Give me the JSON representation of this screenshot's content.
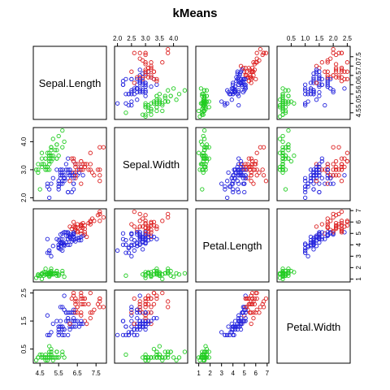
{
  "chart_data": {
    "type": "scatter",
    "title": "kMeans",
    "variables": [
      "Sepal.Length",
      "Sepal.Width",
      "Petal.Length",
      "Petal.Width"
    ],
    "ranges": [
      [
        4.3,
        7.9
      ],
      [
        2.0,
        4.4
      ],
      [
        1.0,
        6.9
      ],
      [
        0.1,
        2.5
      ]
    ],
    "ticks": [
      [
        4.5,
        5.5,
        6.5,
        7.5
      ],
      [
        2.0,
        3.0,
        4.0
      ],
      [
        1,
        2,
        3,
        4,
        5,
        6,
        7
      ],
      [
        0.5,
        1.5,
        2.5
      ]
    ],
    "ticks_minor": [
      [
        5.0,
        6.0,
        7.0
      ],
      [
        2.5,
        3.5
      ],
      [],
      [
        1.0,
        2.0
      ]
    ],
    "tick_labels": [
      [
        "4.5",
        "5.5",
        "6.5",
        "7.5"
      ],
      [
        "2.0",
        "3.0",
        "4.0"
      ],
      [
        "1",
        "2",
        "3",
        "4",
        "5",
        "6",
        "7"
      ],
      [
        "0.5",
        "1.5",
        "2.5"
      ]
    ],
    "tick_labels_minor": [
      [
        "5.0",
        "6.0",
        "7.0"
      ],
      [
        "2.5",
        "3.5"
      ],
      [],
      [
        "1.0",
        "2.0"
      ]
    ],
    "cluster_colors": [
      "#22cc22",
      "#2222dd",
      "#dd2222"
    ],
    "marker": "open-circle",
    "points": [
      [
        5.1,
        3.5,
        1.4,
        0.2,
        0
      ],
      [
        4.9,
        3.0,
        1.4,
        0.2,
        0
      ],
      [
        4.7,
        3.2,
        1.3,
        0.2,
        0
      ],
      [
        4.6,
        3.1,
        1.5,
        0.2,
        0
      ],
      [
        5.0,
        3.6,
        1.4,
        0.2,
        0
      ],
      [
        5.4,
        3.9,
        1.7,
        0.4,
        0
      ],
      [
        4.6,
        3.4,
        1.4,
        0.3,
        0
      ],
      [
        5.0,
        3.4,
        1.5,
        0.2,
        0
      ],
      [
        4.4,
        2.9,
        1.4,
        0.2,
        0
      ],
      [
        4.9,
        3.1,
        1.5,
        0.1,
        0
      ],
      [
        5.4,
        3.7,
        1.5,
        0.2,
        0
      ],
      [
        4.8,
        3.4,
        1.6,
        0.2,
        0
      ],
      [
        4.8,
        3.0,
        1.4,
        0.1,
        0
      ],
      [
        4.3,
        3.0,
        1.1,
        0.1,
        0
      ],
      [
        5.8,
        4.0,
        1.2,
        0.2,
        0
      ],
      [
        5.7,
        4.4,
        1.5,
        0.4,
        0
      ],
      [
        5.4,
        3.9,
        1.3,
        0.4,
        0
      ],
      [
        5.1,
        3.5,
        1.4,
        0.3,
        0
      ],
      [
        5.7,
        3.8,
        1.7,
        0.3,
        0
      ],
      [
        5.1,
        3.8,
        1.5,
        0.3,
        0
      ],
      [
        5.4,
        3.4,
        1.7,
        0.2,
        0
      ],
      [
        5.1,
        3.7,
        1.5,
        0.4,
        0
      ],
      [
        4.6,
        3.6,
        1.0,
        0.2,
        0
      ],
      [
        5.1,
        3.3,
        1.7,
        0.5,
        0
      ],
      [
        4.8,
        3.4,
        1.9,
        0.2,
        0
      ],
      [
        5.0,
        3.0,
        1.6,
        0.2,
        0
      ],
      [
        5.0,
        3.4,
        1.6,
        0.4,
        0
      ],
      [
        5.2,
        3.5,
        1.5,
        0.2,
        0
      ],
      [
        5.2,
        3.4,
        1.4,
        0.2,
        0
      ],
      [
        4.7,
        3.2,
        1.6,
        0.2,
        0
      ],
      [
        4.8,
        3.1,
        1.6,
        0.2,
        0
      ],
      [
        5.4,
        3.4,
        1.5,
        0.4,
        0
      ],
      [
        5.2,
        4.1,
        1.5,
        0.1,
        0
      ],
      [
        5.5,
        4.2,
        1.4,
        0.2,
        0
      ],
      [
        4.9,
        3.1,
        1.5,
        0.2,
        0
      ],
      [
        5.0,
        3.2,
        1.2,
        0.2,
        0
      ],
      [
        5.5,
        3.5,
        1.3,
        0.2,
        0
      ],
      [
        4.9,
        3.6,
        1.4,
        0.1,
        0
      ],
      [
        4.4,
        3.0,
        1.3,
        0.2,
        0
      ],
      [
        5.1,
        3.4,
        1.5,
        0.2,
        0
      ],
      [
        5.0,
        3.5,
        1.3,
        0.3,
        0
      ],
      [
        4.5,
        2.3,
        1.3,
        0.3,
        0
      ],
      [
        4.4,
        3.2,
        1.3,
        0.2,
        0
      ],
      [
        5.0,
        3.5,
        1.6,
        0.6,
        0
      ],
      [
        5.1,
        3.8,
        1.9,
        0.4,
        0
      ],
      [
        4.8,
        3.0,
        1.4,
        0.3,
        0
      ],
      [
        5.1,
        3.8,
        1.6,
        0.2,
        0
      ],
      [
        4.6,
        3.2,
        1.4,
        0.2,
        0
      ],
      [
        5.3,
        3.7,
        1.5,
        0.2,
        0
      ],
      [
        5.0,
        3.3,
        1.4,
        0.2,
        0
      ],
      [
        7.0,
        3.2,
        4.7,
        1.4,
        2
      ],
      [
        6.4,
        3.2,
        4.5,
        1.5,
        1
      ],
      [
        6.9,
        3.1,
        4.9,
        1.5,
        2
      ],
      [
        5.5,
        2.3,
        4.0,
        1.3,
        1
      ],
      [
        6.5,
        2.8,
        4.6,
        1.5,
        1
      ],
      [
        5.7,
        2.8,
        4.5,
        1.3,
        1
      ],
      [
        6.3,
        3.3,
        4.7,
        1.6,
        1
      ],
      [
        4.9,
        2.4,
        3.3,
        1.0,
        1
      ],
      [
        6.6,
        2.9,
        4.6,
        1.3,
        1
      ],
      [
        5.2,
        2.7,
        3.9,
        1.4,
        1
      ],
      [
        5.0,
        2.0,
        3.5,
        1.0,
        1
      ],
      [
        5.9,
        3.0,
        4.2,
        1.5,
        1
      ],
      [
        6.0,
        2.2,
        4.0,
        1.0,
        1
      ],
      [
        6.1,
        2.9,
        4.7,
        1.4,
        1
      ],
      [
        5.6,
        2.9,
        3.6,
        1.3,
        1
      ],
      [
        6.7,
        3.1,
        4.4,
        1.4,
        1
      ],
      [
        5.6,
        3.0,
        4.5,
        1.5,
        1
      ],
      [
        5.8,
        2.7,
        4.1,
        1.0,
        1
      ],
      [
        6.2,
        2.2,
        4.5,
        1.5,
        1
      ],
      [
        5.6,
        2.5,
        3.9,
        1.1,
        1
      ],
      [
        5.9,
        3.2,
        4.8,
        1.8,
        1
      ],
      [
        6.1,
        2.8,
        4.0,
        1.3,
        1
      ],
      [
        6.3,
        2.5,
        4.9,
        1.5,
        1
      ],
      [
        6.1,
        2.8,
        4.7,
        1.2,
        1
      ],
      [
        6.4,
        2.9,
        4.3,
        1.3,
        1
      ],
      [
        6.6,
        3.0,
        4.4,
        1.4,
        1
      ],
      [
        6.8,
        2.8,
        4.8,
        1.4,
        1
      ],
      [
        6.7,
        3.0,
        5.0,
        1.7,
        2
      ],
      [
        6.0,
        2.9,
        4.5,
        1.5,
        1
      ],
      [
        5.7,
        2.6,
        3.5,
        1.0,
        1
      ],
      [
        5.5,
        2.4,
        3.8,
        1.1,
        1
      ],
      [
        5.5,
        2.4,
        3.7,
        1.0,
        1
      ],
      [
        5.8,
        2.7,
        3.9,
        1.2,
        1
      ],
      [
        6.0,
        2.7,
        5.1,
        1.6,
        1
      ],
      [
        5.4,
        3.0,
        4.5,
        1.5,
        1
      ],
      [
        6.0,
        3.4,
        4.5,
        1.6,
        1
      ],
      [
        6.7,
        3.1,
        4.7,
        1.5,
        1
      ],
      [
        6.3,
        2.3,
        4.4,
        1.3,
        1
      ],
      [
        5.6,
        3.0,
        4.1,
        1.3,
        1
      ],
      [
        5.5,
        2.5,
        4.0,
        1.3,
        1
      ],
      [
        5.5,
        2.6,
        4.4,
        1.2,
        1
      ],
      [
        6.1,
        3.0,
        4.6,
        1.4,
        1
      ],
      [
        5.8,
        2.6,
        4.0,
        1.2,
        1
      ],
      [
        5.0,
        2.3,
        3.3,
        1.0,
        1
      ],
      [
        5.6,
        2.7,
        4.2,
        1.3,
        1
      ],
      [
        5.7,
        3.0,
        4.2,
        1.2,
        1
      ],
      [
        5.7,
        2.9,
        4.2,
        1.3,
        1
      ],
      [
        6.2,
        2.9,
        4.3,
        1.3,
        1
      ],
      [
        5.1,
        2.5,
        3.0,
        1.1,
        1
      ],
      [
        5.7,
        2.8,
        4.1,
        1.3,
        1
      ],
      [
        6.3,
        3.3,
        6.0,
        2.5,
        2
      ],
      [
        5.8,
        2.7,
        5.1,
        1.9,
        1
      ],
      [
        7.1,
        3.0,
        5.9,
        2.1,
        2
      ],
      [
        6.3,
        2.9,
        5.6,
        1.8,
        2
      ],
      [
        6.5,
        3.0,
        5.8,
        2.2,
        2
      ],
      [
        7.6,
        3.0,
        6.6,
        2.1,
        2
      ],
      [
        4.9,
        2.5,
        4.5,
        1.7,
        1
      ],
      [
        7.3,
        2.9,
        6.3,
        1.8,
        2
      ],
      [
        6.7,
        2.5,
        5.8,
        1.8,
        2
      ],
      [
        7.2,
        3.6,
        6.1,
        2.5,
        2
      ],
      [
        6.5,
        3.2,
        5.1,
        2.0,
        2
      ],
      [
        6.4,
        2.7,
        5.3,
        1.9,
        2
      ],
      [
        6.8,
        3.0,
        5.5,
        2.1,
        2
      ],
      [
        5.7,
        2.5,
        5.0,
        2.0,
        1
      ],
      [
        5.8,
        2.8,
        5.1,
        2.4,
        1
      ],
      [
        6.4,
        3.2,
        5.3,
        2.3,
        2
      ],
      [
        6.5,
        3.0,
        5.5,
        1.8,
        2
      ],
      [
        7.7,
        3.8,
        6.7,
        2.2,
        2
      ],
      [
        7.7,
        2.6,
        6.9,
        2.3,
        2
      ],
      [
        6.0,
        2.2,
        5.0,
        1.5,
        1
      ],
      [
        6.9,
        3.2,
        5.7,
        2.3,
        2
      ],
      [
        5.6,
        2.8,
        4.9,
        2.0,
        1
      ],
      [
        7.7,
        2.8,
        6.7,
        2.0,
        2
      ],
      [
        6.3,
        2.7,
        4.9,
        1.8,
        1
      ],
      [
        6.7,
        3.3,
        5.7,
        2.1,
        2
      ],
      [
        7.2,
        3.2,
        6.0,
        1.8,
        2
      ],
      [
        6.2,
        2.8,
        4.8,
        1.8,
        1
      ],
      [
        6.1,
        3.0,
        4.9,
        1.8,
        1
      ],
      [
        6.4,
        2.8,
        5.6,
        2.1,
        2
      ],
      [
        7.2,
        3.0,
        5.8,
        1.6,
        2
      ],
      [
        7.4,
        2.8,
        6.1,
        1.9,
        2
      ],
      [
        7.9,
        3.8,
        6.4,
        2.0,
        2
      ],
      [
        6.4,
        2.8,
        5.6,
        2.2,
        2
      ],
      [
        6.3,
        2.8,
        5.1,
        1.5,
        1
      ],
      [
        6.1,
        2.6,
        5.6,
        1.4,
        2
      ],
      [
        7.7,
        3.0,
        6.1,
        2.3,
        2
      ],
      [
        6.3,
        3.4,
        5.6,
        2.4,
        2
      ],
      [
        6.4,
        3.1,
        5.5,
        1.8,
        2
      ],
      [
        6.0,
        3.0,
        4.8,
        1.8,
        1
      ],
      [
        6.9,
        3.1,
        5.4,
        2.1,
        2
      ],
      [
        6.7,
        3.1,
        5.6,
        2.4,
        2
      ],
      [
        6.9,
        3.1,
        5.1,
        2.3,
        2
      ],
      [
        5.8,
        2.7,
        5.1,
        1.9,
        1
      ],
      [
        6.8,
        3.2,
        5.9,
        2.3,
        2
      ],
      [
        6.7,
        3.3,
        5.7,
        2.5,
        2
      ],
      [
        6.7,
        3.0,
        5.2,
        2.3,
        2
      ],
      [
        6.3,
        2.5,
        5.0,
        1.9,
        1
      ],
      [
        6.5,
        3.0,
        5.2,
        2.0,
        2
      ],
      [
        6.2,
        3.4,
        5.4,
        2.3,
        2
      ],
      [
        5.9,
        3.0,
        5.1,
        1.8,
        1
      ]
    ]
  }
}
